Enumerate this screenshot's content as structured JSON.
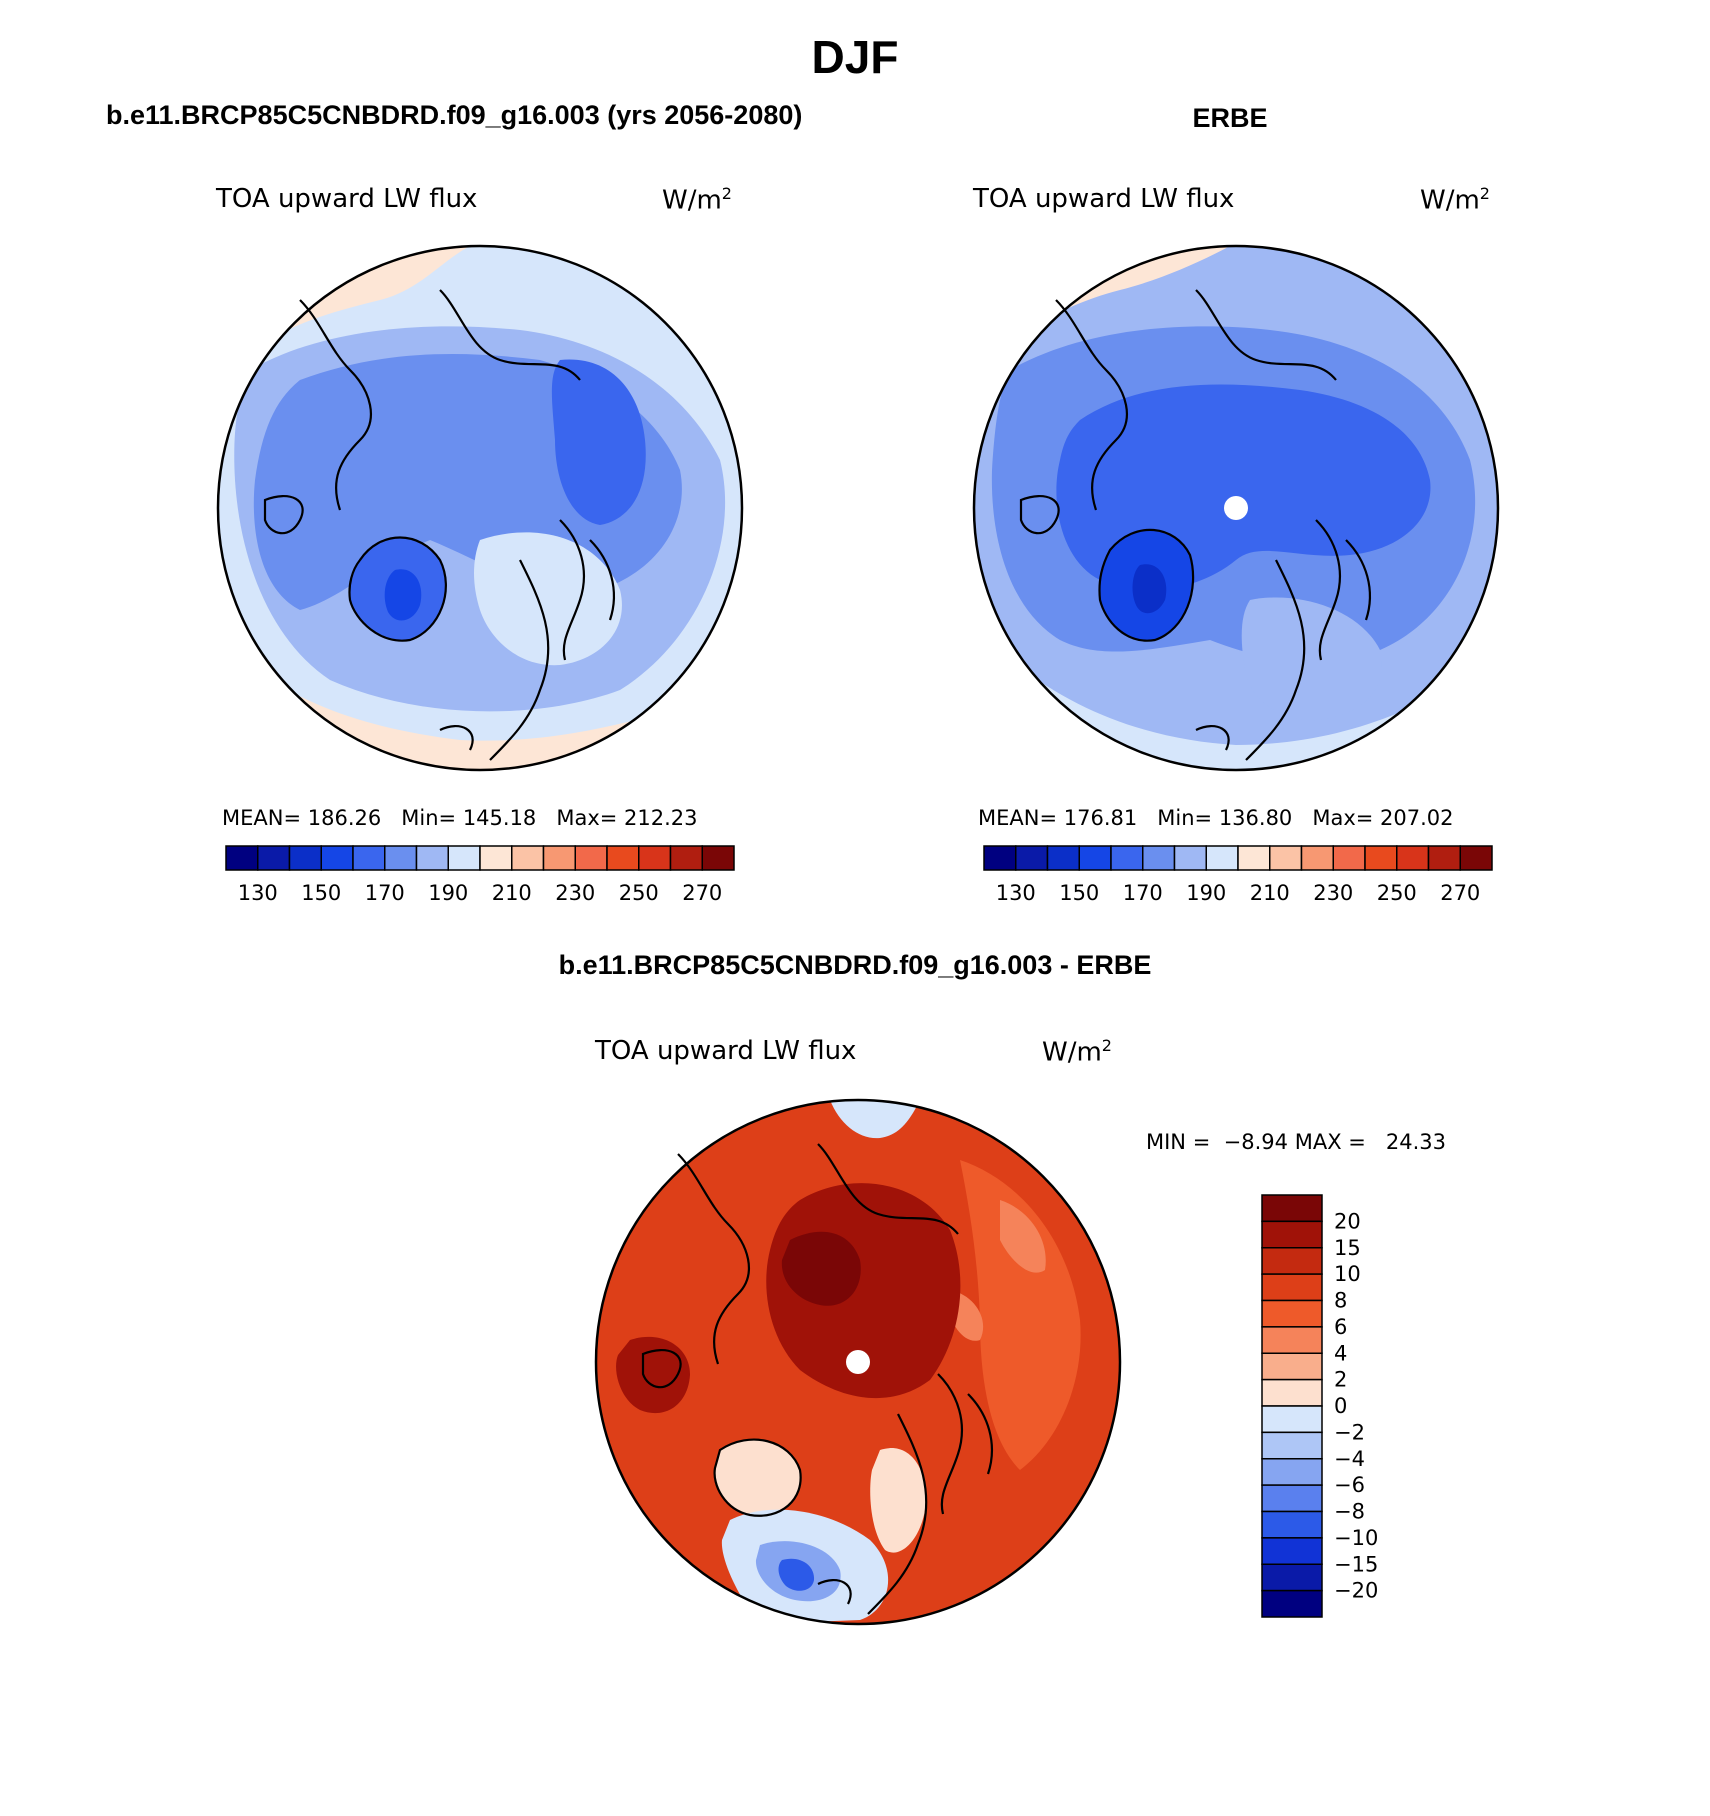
{
  "figure": {
    "title": "DJF"
  },
  "chart_data": [
    {
      "type": "heatmap",
      "projection": "north-polar-stereographic",
      "title": "b.e11.BRCP85C5CNBDRD.f09_g16.003 (yrs 2056-2080)",
      "variable": "TOA upward LW flux",
      "units_base": "W/m",
      "units_exp": "2",
      "stats": {
        "mean_label": "MEAN=",
        "mean": "186.26",
        "min_label": "Min=",
        "min": "145.18",
        "max_label": "Max=",
        "max": "212.23"
      },
      "colorbar": {
        "orientation": "horizontal",
        "colors": [
          "#000080",
          "#0a1aa8",
          "#0b2fc8",
          "#1546e6",
          "#3a66ee",
          "#6a8fef",
          "#9fb8f4",
          "#d6e6fb",
          "#fde6d6",
          "#fbc3a6",
          "#f79872",
          "#f2694a",
          "#e84a1e",
          "#d8341a",
          "#b01e10",
          "#7a0606"
        ],
        "tick_labels": [
          "130",
          "150",
          "170",
          "190",
          "210",
          "230",
          "250",
          "270"
        ]
      }
    },
    {
      "type": "heatmap",
      "projection": "north-polar-stereographic",
      "title": "ERBE",
      "variable": "TOA upward LW flux",
      "units_base": "W/m",
      "units_exp": "2",
      "stats": {
        "mean_label": "MEAN=",
        "mean": "176.81",
        "min_label": "Min=",
        "min": "136.80",
        "max_label": "Max=",
        "max": "207.02"
      },
      "colorbar": {
        "orientation": "horizontal",
        "colors": [
          "#000080",
          "#0a1aa8",
          "#0b2fc8",
          "#1546e6",
          "#3a66ee",
          "#6a8fef",
          "#9fb8f4",
          "#d6e6fb",
          "#fde6d6",
          "#fbc3a6",
          "#f79872",
          "#f2694a",
          "#e84a1e",
          "#d8341a",
          "#b01e10",
          "#7a0606"
        ],
        "tick_labels": [
          "130",
          "150",
          "170",
          "190",
          "210",
          "230",
          "250",
          "270"
        ]
      }
    },
    {
      "type": "heatmap",
      "projection": "north-polar-stereographic",
      "title": "b.e11.BRCP85C5CNBDRD.f09_g16.003 - ERBE",
      "variable": "TOA upward LW flux",
      "units_base": "W/m",
      "units_exp": "2",
      "stats": {
        "min_label": "MIN =",
        "min": "−8.94",
        "max_label": "MAX =",
        "max": "24.33"
      },
      "colorbar": {
        "orientation": "vertical",
        "colors": [
          "#7a0606",
          "#a01208",
          "#c42a10",
          "#dd3f18",
          "#ee5a2a",
          "#f5835a",
          "#f9ae8c",
          "#fde0cf",
          "#d6e6fb",
          "#aec6f6",
          "#86a5f1",
          "#5a80ee",
          "#2c5ae8",
          "#1133d6",
          "#0a1aa8",
          "#000080"
        ],
        "tick_labels": [
          "20",
          "15",
          "10",
          "8",
          "6",
          "4",
          "2",
          "0",
          "−2",
          "−4",
          "−6",
          "−8",
          "−10",
          "−15",
          "−20"
        ]
      }
    }
  ]
}
